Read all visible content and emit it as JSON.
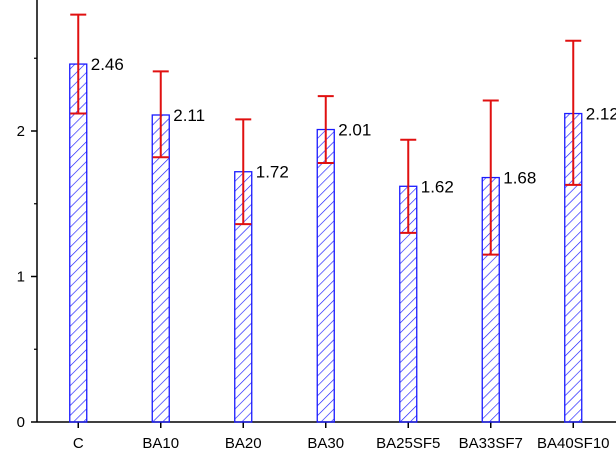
{
  "chart_data": {
    "type": "bar",
    "categories": [
      "C",
      "BA10",
      "BA20",
      "BA30",
      "BA25SF5",
      "BA33SF7",
      "BA40SF10"
    ],
    "values": [
      2.46,
      2.11,
      1.72,
      2.01,
      1.62,
      1.68,
      2.12
    ],
    "value_labels": [
      "2.46",
      "2.11",
      "1.72",
      "2.01",
      "1.62",
      "1.68",
      "2.12"
    ],
    "error_low": [
      2.12,
      1.82,
      1.36,
      1.78,
      1.3,
      1.15,
      1.63
    ],
    "error_high": [
      2.8,
      2.41,
      2.08,
      2.24,
      1.94,
      2.21,
      2.62
    ],
    "ylim": [
      0,
      2.9
    ],
    "y_ticks": [
      0,
      1,
      2
    ],
    "y_tick_labels": [
      "0",
      "1",
      "2"
    ],
    "title": "",
    "xlabel": "",
    "ylabel": "",
    "grid": false,
    "colors": {
      "bar_edge": "#1a1aff",
      "hatch": "#1a1aff",
      "error_bar": "#e01010",
      "axis": "#000000"
    }
  }
}
